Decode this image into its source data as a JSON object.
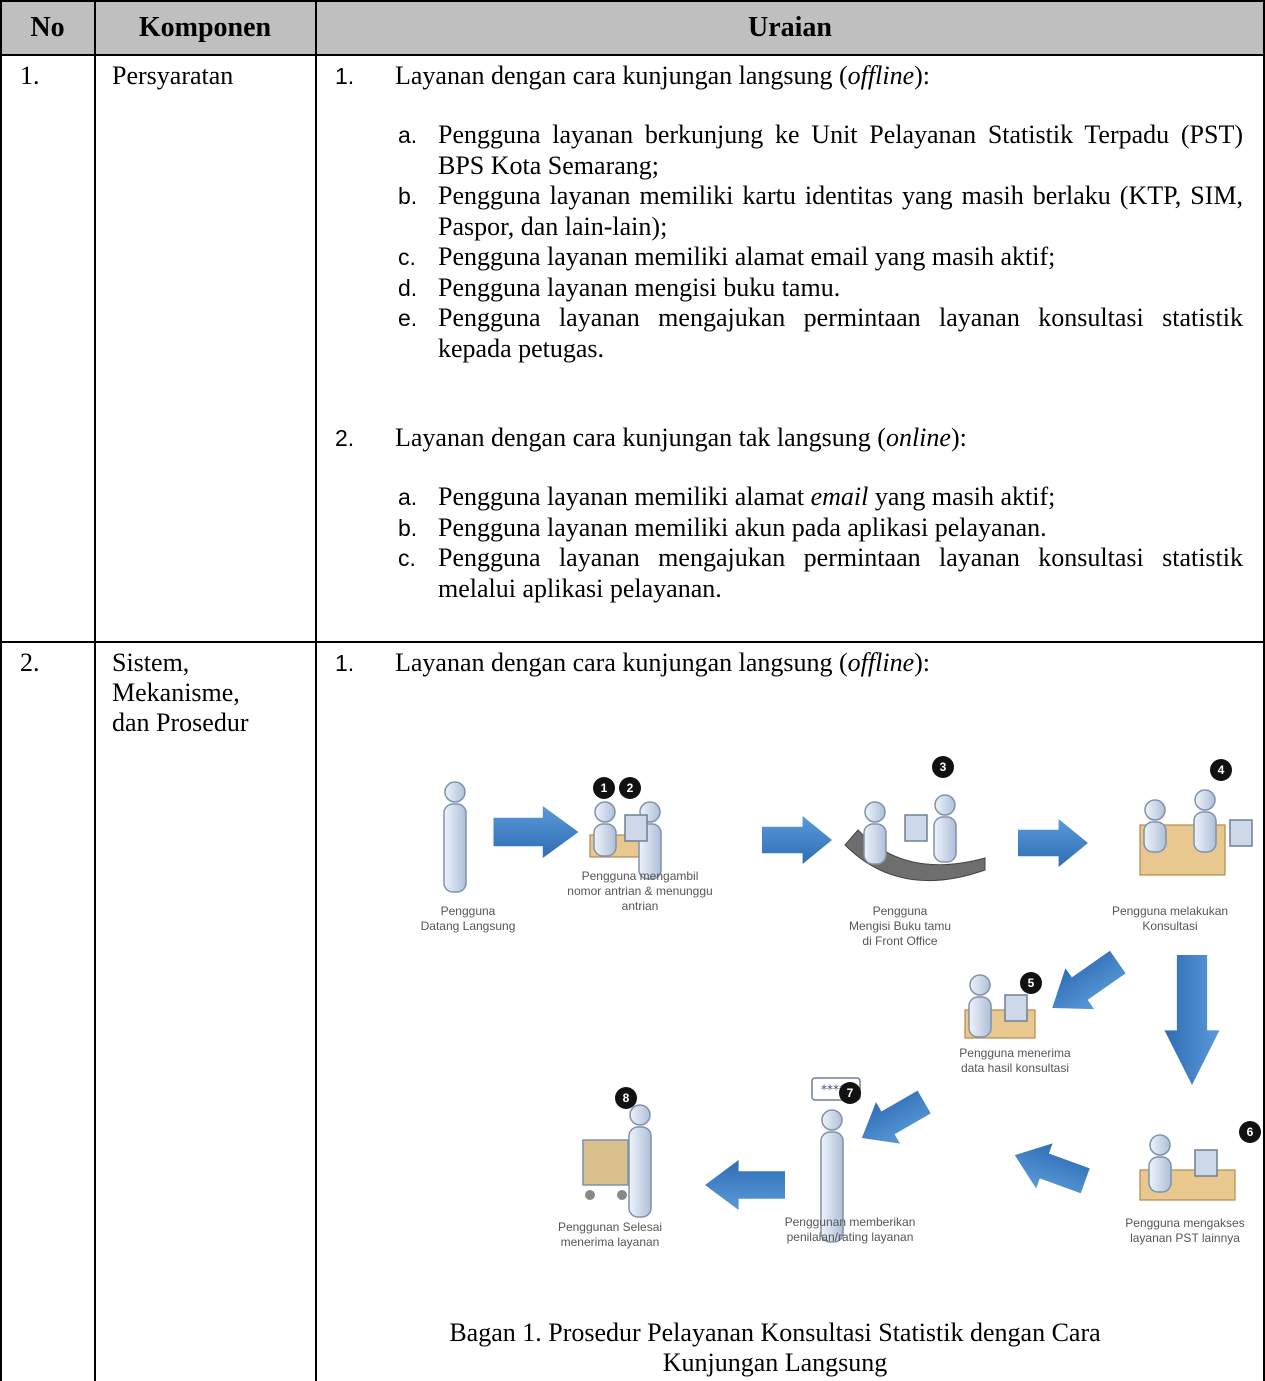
{
  "table": {
    "headers": [
      "No",
      "Komponen",
      "Uraian"
    ],
    "rows": [
      {
        "no": "1.",
        "component": [
          "Persyaratan"
        ],
        "sections": [
          {
            "marker": "1.",
            "heading": [
              "Layanan dengan cara kunjungan langsung (",
              "offline",
              "):"
            ],
            "items": [
              {
                "marker": "a.",
                "text": [
                  "Pengguna layanan berkunjung ke Unit Pelayanan Statistik Terpadu (PST) BPS Kota Semarang;"
                ]
              },
              {
                "marker": "b.",
                "text": [
                  "Pengguna layanan memiliki kartu identitas yang masih berlaku (KTP, SIM, Paspor, dan lain-lain);"
                ]
              },
              {
                "marker": "c.",
                "text": [
                  "Pengguna layanan memiliki alamat email yang masih aktif;"
                ]
              },
              {
                "marker": "d.",
                "text": [
                  "Pengguna layanan mengisi buku tamu."
                ]
              },
              {
                "marker": "e.",
                "text": [
                  "Pengguna layanan mengajukan permintaan layanan konsultasi statistik kepada petugas."
                ]
              }
            ]
          },
          {
            "marker": "2.",
            "heading": [
              "Layanan dengan cara kunjungan tak langsung (",
              "online",
              "):"
            ],
            "items": [
              {
                "marker": "a.",
                "text": [
                  "Pengguna layanan memiliki alamat ",
                  "email",
                  " yang masih aktif;"
                ]
              },
              {
                "marker": "b.",
                "text": [
                  "Pengguna layanan memiliki akun pada aplikasi pelayanan."
                ]
              },
              {
                "marker": "c.",
                "text": [
                  "Pengguna layanan mengajukan permintaan layanan konsultasi statistik melalui aplikasi pelayanan."
                ]
              }
            ]
          }
        ]
      },
      {
        "no": "2.",
        "component": [
          "Sistem,",
          "Mekanisme,",
          "dan Prosedur"
        ],
        "sections": [
          {
            "marker": "1.",
            "heading": [
              "Layanan dengan cara kunjungan langsung (",
              "offline",
              "):"
            ],
            "items": []
          }
        ]
      }
    ]
  },
  "diagram": {
    "badges": [
      "1",
      "2",
      "3",
      "4",
      "5",
      "6",
      "7",
      "8"
    ],
    "labels": [
      [
        "Pengguna",
        "Datang Langsung"
      ],
      [
        "Pengguna mengambil",
        "nomor antrian & menunggu",
        "antrian"
      ],
      [
        "Pengguna",
        "Mengisi Buku tamu",
        "di Front Office"
      ],
      [
        "Pengguna melakukan",
        "Konsultasi"
      ],
      [
        "Pengguna menerima",
        "data hasil konsultasi"
      ],
      [
        "Pengguna mengakses",
        "layanan PST lainnya"
      ],
      [
        "Penggunan memberikan",
        "penilaian/rating layanan"
      ],
      [
        "Penggunan Selesai",
        "menerima layanan"
      ]
    ],
    "rating_bubble": "*****",
    "caption": [
      "Bagan 1. Prosedur Pelayanan Konsultasi Statistik dengan Cara",
      "Kunjungan Langsung"
    ]
  }
}
